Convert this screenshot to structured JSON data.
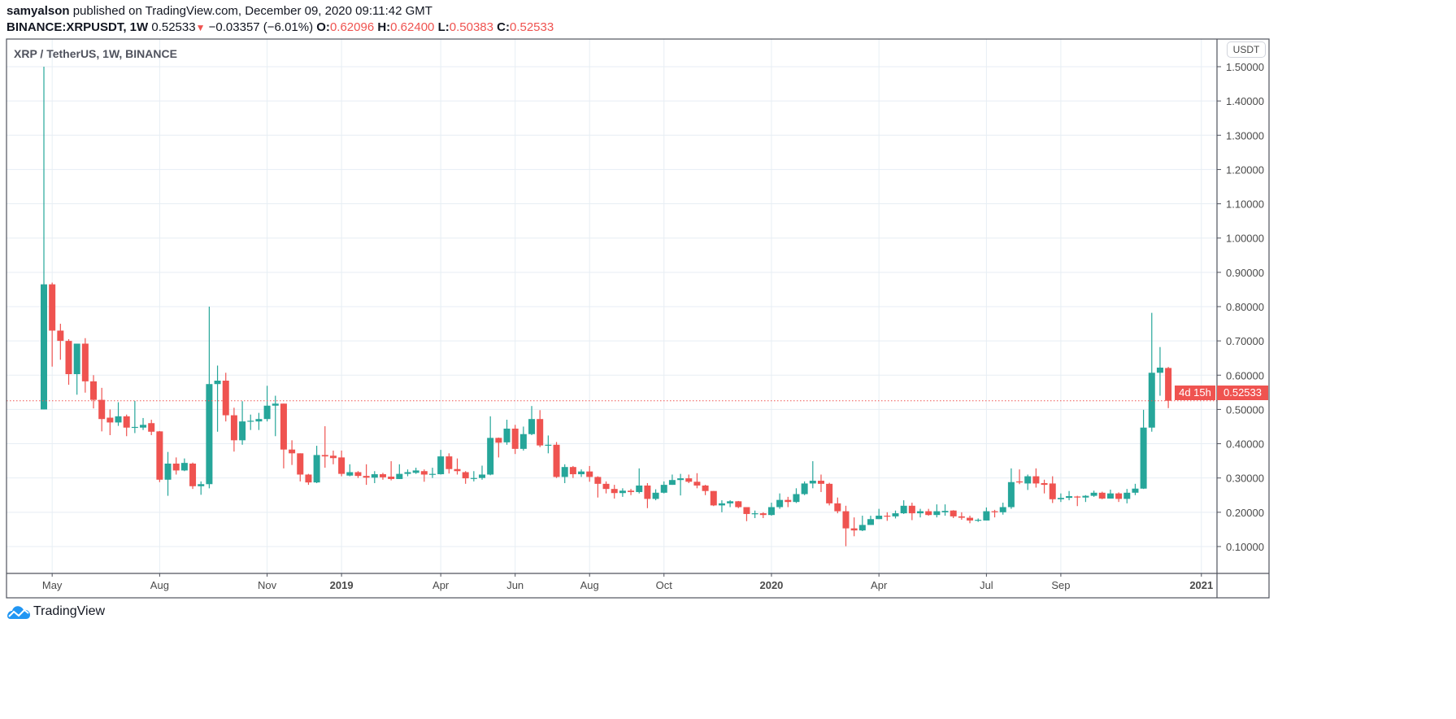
{
  "header": {
    "author": "samyalson",
    "published_text": "published on TradingView.com, December 09, 2020 09:11:42 GMT",
    "symbol": "BINANCE:XRPUSDT, 1W",
    "last": "0.52533",
    "change_icon": "triangle-down-icon",
    "change": "−0.03357 (−6.01%)",
    "o_label": "O:",
    "o": "0.62096",
    "h_label": "H:",
    "h": "0.62400",
    "l_label": "L:",
    "l": "0.50383",
    "c_label": "C:",
    "c": "0.52533"
  },
  "legend": "XRP / TetherUS, 1W, BINANCE",
  "currency_button": "USDT",
  "price_label": "0.52533",
  "countdown": "4d 15h",
  "logo_text": "TradingView",
  "colors": {
    "up": "#26a69a",
    "down": "#ef5350",
    "grid": "#e7eef4",
    "price_line": "#ef5350"
  },
  "chart_data": {
    "type": "candlestick",
    "title": "XRP / TetherUS, 1W, BINANCE",
    "interval": "1W",
    "ylim": [
      0.03,
      1.58
    ],
    "y_ticks": [
      "1.50000",
      "1.40000",
      "1.30000",
      "1.20000",
      "1.10000",
      "1.00000",
      "0.90000",
      "0.80000",
      "0.70000",
      "0.60000",
      "0.50000",
      "0.40000",
      "0.30000",
      "0.20000",
      "0.10000"
    ],
    "x_ticks": [
      {
        "label": "May",
        "bold": false
      },
      {
        "label": "Aug",
        "bold": false
      },
      {
        "label": "Nov",
        "bold": false
      },
      {
        "label": "2019",
        "bold": true
      },
      {
        "label": "Apr",
        "bold": false
      },
      {
        "label": "Jun",
        "bold": false
      },
      {
        "label": "Aug",
        "bold": false
      },
      {
        "label": "Oct",
        "bold": false
      },
      {
        "label": "2020",
        "bold": true
      },
      {
        "label": "Apr",
        "bold": false
      },
      {
        "label": "Jul",
        "bold": false
      },
      {
        "label": "Sep",
        "bold": false
      },
      {
        "label": "2021",
        "bold": true
      }
    ],
    "grid": true,
    "last_price": 0.52533,
    "ohlc_fields": [
      "open",
      "high",
      "low",
      "close"
    ],
    "candles": [
      [
        0.5,
        1.5,
        0.5,
        0.865
      ],
      [
        0.865,
        0.87,
        0.625,
        0.73
      ],
      [
        0.73,
        0.75,
        0.645,
        0.7
      ],
      [
        0.7,
        0.705,
        0.572,
        0.603
      ],
      [
        0.603,
        0.692,
        0.543,
        0.692
      ],
      [
        0.692,
        0.708,
        0.549,
        0.582
      ],
      [
        0.582,
        0.6,
        0.503,
        0.528
      ],
      [
        0.528,
        0.563,
        0.436,
        0.472
      ],
      [
        0.476,
        0.5,
        0.425,
        0.462
      ],
      [
        0.462,
        0.521,
        0.452,
        0.48
      ],
      [
        0.48,
        0.485,
        0.422,
        0.447
      ],
      [
        0.447,
        0.525,
        0.431,
        0.449
      ],
      [
        0.447,
        0.475,
        0.44,
        0.455
      ],
      [
        0.46,
        0.47,
        0.425,
        0.435
      ],
      [
        0.436,
        0.437,
        0.288,
        0.295
      ],
      [
        0.295,
        0.376,
        0.248,
        0.342
      ],
      [
        0.342,
        0.36,
        0.31,
        0.322
      ],
      [
        0.322,
        0.357,
        0.32,
        0.344
      ],
      [
        0.342,
        0.345,
        0.268,
        0.276
      ],
      [
        0.276,
        0.29,
        0.251,
        0.282
      ],
      [
        0.282,
        0.8,
        0.27,
        0.574
      ],
      [
        0.574,
        0.628,
        0.435,
        0.584
      ],
      [
        0.584,
        0.607,
        0.465,
        0.483
      ],
      [
        0.483,
        0.505,
        0.377,
        0.41
      ],
      [
        0.41,
        0.524,
        0.397,
        0.465
      ],
      [
        0.465,
        0.485,
        0.44,
        0.467
      ],
      [
        0.465,
        0.49,
        0.44,
        0.472
      ],
      [
        0.472,
        0.569,
        0.465,
        0.511
      ],
      [
        0.511,
        0.54,
        0.422,
        0.517
      ],
      [
        0.517,
        0.517,
        0.328,
        0.383
      ],
      [
        0.383,
        0.41,
        0.338,
        0.372
      ],
      [
        0.372,
        0.372,
        0.29,
        0.31
      ],
      [
        0.31,
        0.312,
        0.28,
        0.287
      ],
      [
        0.287,
        0.394,
        0.285,
        0.367
      ],
      [
        0.367,
        0.451,
        0.33,
        0.363
      ],
      [
        0.365,
        0.38,
        0.34,
        0.358
      ],
      [
        0.36,
        0.38,
        0.305,
        0.312
      ],
      [
        0.307,
        0.34,
        0.305,
        0.317
      ],
      [
        0.317,
        0.32,
        0.3,
        0.306
      ],
      [
        0.306,
        0.34,
        0.28,
        0.301
      ],
      [
        0.301,
        0.32,
        0.285,
        0.311
      ],
      [
        0.311,
        0.315,
        0.295,
        0.302
      ],
      [
        0.304,
        0.349,
        0.293,
        0.297
      ],
      [
        0.297,
        0.34,
        0.297,
        0.312
      ],
      [
        0.312,
        0.325,
        0.305,
        0.317
      ],
      [
        0.315,
        0.33,
        0.312,
        0.322
      ],
      [
        0.32,
        0.325,
        0.289,
        0.31
      ],
      [
        0.31,
        0.33,
        0.3,
        0.312
      ],
      [
        0.311,
        0.382,
        0.31,
        0.363
      ],
      [
        0.363,
        0.372,
        0.313,
        0.326
      ],
      [
        0.326,
        0.357,
        0.31,
        0.32
      ],
      [
        0.317,
        0.32,
        0.283,
        0.299
      ],
      [
        0.299,
        0.32,
        0.29,
        0.3
      ],
      [
        0.3,
        0.336,
        0.295,
        0.31
      ],
      [
        0.31,
        0.48,
        0.308,
        0.417
      ],
      [
        0.417,
        0.418,
        0.36,
        0.403
      ],
      [
        0.404,
        0.47,
        0.397,
        0.444
      ],
      [
        0.444,
        0.455,
        0.37,
        0.385
      ],
      [
        0.385,
        0.45,
        0.38,
        0.428
      ],
      [
        0.428,
        0.51,
        0.425,
        0.472
      ],
      [
        0.472,
        0.498,
        0.39,
        0.395
      ],
      [
        0.395,
        0.424,
        0.372,
        0.397
      ],
      [
        0.397,
        0.405,
        0.3,
        0.303
      ],
      [
        0.303,
        0.34,
        0.285,
        0.332
      ],
      [
        0.332,
        0.335,
        0.3,
        0.311
      ],
      [
        0.311,
        0.325,
        0.303,
        0.319
      ],
      [
        0.319,
        0.335,
        0.289,
        0.303
      ],
      [
        0.303,
        0.305,
        0.243,
        0.283
      ],
      [
        0.283,
        0.29,
        0.255,
        0.268
      ],
      [
        0.268,
        0.28,
        0.24,
        0.256
      ],
      [
        0.256,
        0.27,
        0.245,
        0.263
      ],
      [
        0.263,
        0.268,
        0.25,
        0.259
      ],
      [
        0.259,
        0.328,
        0.255,
        0.278
      ],
      [
        0.278,
        0.285,
        0.212,
        0.239
      ],
      [
        0.239,
        0.267,
        0.235,
        0.257
      ],
      [
        0.257,
        0.29,
        0.255,
        0.28
      ],
      [
        0.28,
        0.31,
        0.28,
        0.294
      ],
      [
        0.294,
        0.312,
        0.249,
        0.299
      ],
      [
        0.299,
        0.31,
        0.285,
        0.289
      ],
      [
        0.289,
        0.314,
        0.27,
        0.278
      ],
      [
        0.278,
        0.28,
        0.25,
        0.262
      ],
      [
        0.262,
        0.262,
        0.218,
        0.22
      ],
      [
        0.22,
        0.235,
        0.2,
        0.226
      ],
      [
        0.226,
        0.235,
        0.215,
        0.232
      ],
      [
        0.232,
        0.233,
        0.212,
        0.215
      ],
      [
        0.215,
        0.215,
        0.174,
        0.195
      ],
      [
        0.195,
        0.205,
        0.183,
        0.197
      ],
      [
        0.197,
        0.2,
        0.183,
        0.192
      ],
      [
        0.192,
        0.228,
        0.19,
        0.215
      ],
      [
        0.215,
        0.255,
        0.21,
        0.236
      ],
      [
        0.236,
        0.245,
        0.215,
        0.23
      ],
      [
        0.23,
        0.27,
        0.227,
        0.253
      ],
      [
        0.253,
        0.29,
        0.25,
        0.284
      ],
      [
        0.284,
        0.349,
        0.27,
        0.292
      ],
      [
        0.292,
        0.31,
        0.259,
        0.283
      ],
      [
        0.283,
        0.286,
        0.22,
        0.226
      ],
      [
        0.226,
        0.243,
        0.197,
        0.203
      ],
      [
        0.203,
        0.219,
        0.101,
        0.153
      ],
      [
        0.153,
        0.185,
        0.13,
        0.147
      ],
      [
        0.147,
        0.19,
        0.145,
        0.163
      ],
      [
        0.163,
        0.19,
        0.163,
        0.18
      ],
      [
        0.18,
        0.21,
        0.18,
        0.19
      ],
      [
        0.19,
        0.2,
        0.175,
        0.188
      ],
      [
        0.188,
        0.205,
        0.182,
        0.197
      ],
      [
        0.197,
        0.235,
        0.195,
        0.219
      ],
      [
        0.219,
        0.228,
        0.177,
        0.197
      ],
      [
        0.197,
        0.21,
        0.185,
        0.203
      ],
      [
        0.203,
        0.21,
        0.19,
        0.192
      ],
      [
        0.192,
        0.223,
        0.185,
        0.203
      ],
      [
        0.2,
        0.223,
        0.19,
        0.204
      ],
      [
        0.205,
        0.206,
        0.183,
        0.188
      ],
      [
        0.188,
        0.2,
        0.178,
        0.184
      ],
      [
        0.184,
        0.19,
        0.168,
        0.176
      ],
      [
        0.176,
        0.182,
        0.172,
        0.178
      ],
      [
        0.176,
        0.214,
        0.176,
        0.203
      ],
      [
        0.203,
        0.207,
        0.185,
        0.2
      ],
      [
        0.2,
        0.228,
        0.193,
        0.215
      ],
      [
        0.215,
        0.328,
        0.21,
        0.288
      ],
      [
        0.29,
        0.325,
        0.282,
        0.287
      ],
      [
        0.284,
        0.31,
        0.265,
        0.305
      ],
      [
        0.305,
        0.328,
        0.272,
        0.284
      ],
      [
        0.285,
        0.295,
        0.255,
        0.28
      ],
      [
        0.284,
        0.305,
        0.227,
        0.238
      ],
      [
        0.238,
        0.255,
        0.23,
        0.242
      ],
      [
        0.242,
        0.262,
        0.235,
        0.247
      ],
      [
        0.246,
        0.248,
        0.218,
        0.243
      ],
      [
        0.243,
        0.25,
        0.23,
        0.248
      ],
      [
        0.248,
        0.263,
        0.245,
        0.257
      ],
      [
        0.257,
        0.26,
        0.238,
        0.24
      ],
      [
        0.24,
        0.266,
        0.24,
        0.255
      ],
      [
        0.255,
        0.258,
        0.23,
        0.239
      ],
      [
        0.239,
        0.268,
        0.226,
        0.257
      ],
      [
        0.257,
        0.283,
        0.25,
        0.269
      ],
      [
        0.269,
        0.499,
        0.268,
        0.447
      ],
      [
        0.447,
        0.782,
        0.435,
        0.607
      ],
      [
        0.607,
        0.682,
        0.54,
        0.622
      ],
      [
        0.62096,
        0.624,
        0.50383,
        0.52533
      ]
    ]
  }
}
